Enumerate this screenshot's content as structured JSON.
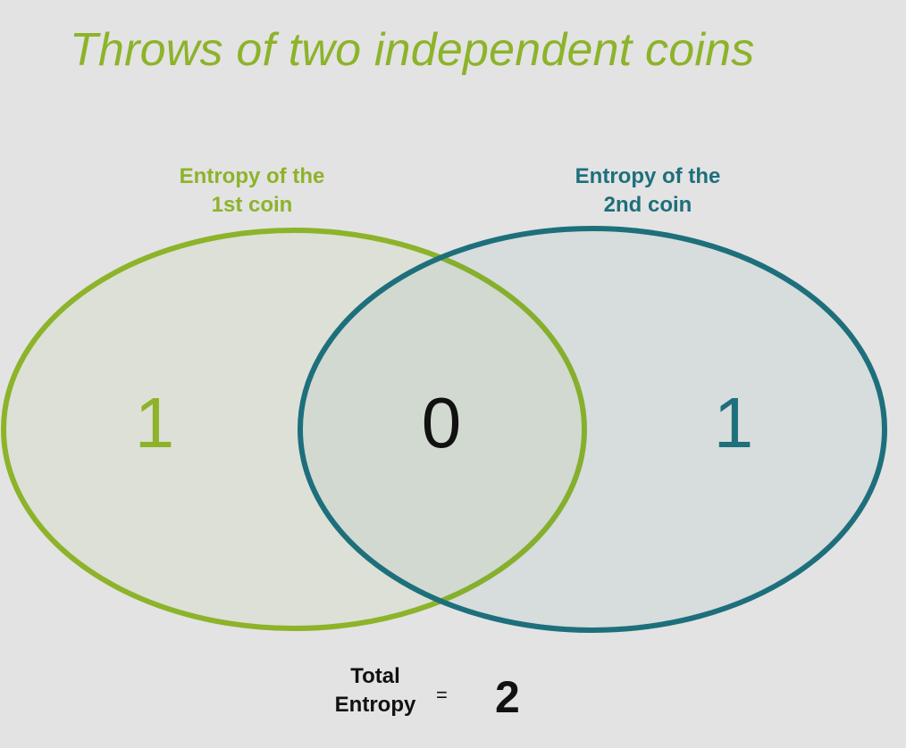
{
  "title": "Throws of two independent coins",
  "sets": [
    {
      "label_line1": "Entropy of the",
      "label_line2": "1st coin",
      "color": "#8db32a"
    },
    {
      "label_line1": "Entropy of the",
      "label_line2": "2nd coin",
      "color": "#1e6f7c"
    }
  ],
  "regions": {
    "only_first": "1",
    "overlap": "0",
    "only_second": "1"
  },
  "total": {
    "label_line1": "Total",
    "label_line2": "Entropy",
    "equals": "=",
    "value": "2"
  }
}
